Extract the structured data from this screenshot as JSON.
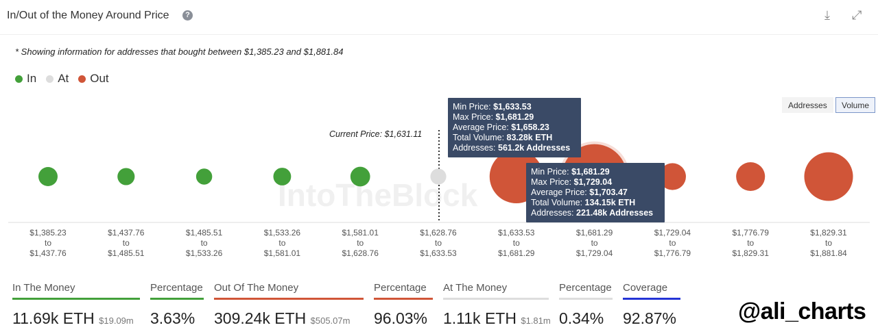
{
  "header": {
    "title": "In/Out of the Money Around Price",
    "help_icon": "question-circle-icon",
    "download_icon": "download-icon",
    "expand_icon": "expand-icon"
  },
  "note": "* Showing information for addresses that bought between $1,385.23 and $1,881.84",
  "legend": [
    {
      "label": "In",
      "color": "#43a03a"
    },
    {
      "label": "At",
      "color": "#dddddd"
    },
    {
      "label": "Out",
      "color": "#d05538"
    }
  ],
  "toggle": {
    "addresses": "Addresses",
    "volume": "Volume",
    "selected": "Volume"
  },
  "watermark_bg": "IntoTheBlock",
  "chart_data": {
    "type": "scatter",
    "encoding": "bubble size = total volume (ETH)",
    "current_price_label": "Current Price: $1,631.11",
    "current_price": 1631.11,
    "categories": [
      {
        "from": "$1,385.23",
        "to": "$1,437.76",
        "status": "In",
        "volume_k": 3.1
      },
      {
        "from": "$1,437.76",
        "to": "$1,485.51",
        "status": "In",
        "volume_k": 1.8
      },
      {
        "from": "$1,485.51",
        "to": "$1,533.26",
        "status": "In",
        "volume_k": 1.2
      },
      {
        "from": "$1,533.26",
        "to": "$1,581.01",
        "status": "In",
        "volume_k": 2.1
      },
      {
        "from": "$1,581.01",
        "to": "$1,628.76",
        "status": "In",
        "volume_k": 3.5
      },
      {
        "from": "$1,628.76",
        "to": "$1,633.53",
        "status": "At",
        "volume_k": 1.11
      },
      {
        "from": "$1,633.53",
        "to": "$1,681.29",
        "status": "Out",
        "volume_k": 83.28
      },
      {
        "from": "$1,681.29",
        "to": "$1,729.04",
        "status": "Out",
        "volume_k": 134.15
      },
      {
        "from": "$1,729.04",
        "to": "$1,776.79",
        "status": "Out",
        "volume_k": 11.6
      },
      {
        "from": "$1,776.79",
        "to": "$1,829.31",
        "status": "Out",
        "volume_k": 14.7
      },
      {
        "from": "$1,829.31",
        "to": "$1,881.84",
        "status": "Out",
        "volume_k": 65.5
      }
    ],
    "to_word": "to",
    "tooltips": [
      {
        "min_label": "Min Price:",
        "min": "$1,633.53",
        "max_label": "Max Price:",
        "max": "$1,681.29",
        "avg_label": "Average Price:",
        "avg": "$1,658.23",
        "vol_label": "Total Volume:",
        "vol": "83.28k ETH",
        "addr_label": "Addresses:",
        "addr": "561.2k Addresses"
      },
      {
        "min_label": "Min Price:",
        "min": "$1,681.29",
        "max_label": "Max Price:",
        "max": "$1,729.04",
        "avg_label": "Average Price:",
        "avg": "$1,703.47",
        "vol_label": "Total Volume:",
        "vol": "134.15k ETH",
        "addr_label": "Addresses:",
        "addr": "221.48k Addresses"
      }
    ]
  },
  "stats": [
    {
      "label": "In The Money",
      "value": "11.69k ETH",
      "sub": "$19.09m",
      "color": "#43a03a"
    },
    {
      "label": "Percentage",
      "value": "3.63%",
      "color": "#43a03a"
    },
    {
      "label": "Out Of The Money",
      "value": "309.24k ETH",
      "sub": "$505.07m",
      "color": "#d05538"
    },
    {
      "label": "Percentage",
      "value": "96.03%",
      "color": "#d05538"
    },
    {
      "label": "At The Money",
      "value": "1.11k ETH",
      "sub": "$1.81m",
      "color": "#dddddd"
    },
    {
      "label": "Percentage",
      "value": "0.34%",
      "color": "#dddddd"
    },
    {
      "label": "Coverage",
      "value": "92.87%",
      "color": "#2434d6"
    }
  ],
  "watermark": "@ali_charts"
}
